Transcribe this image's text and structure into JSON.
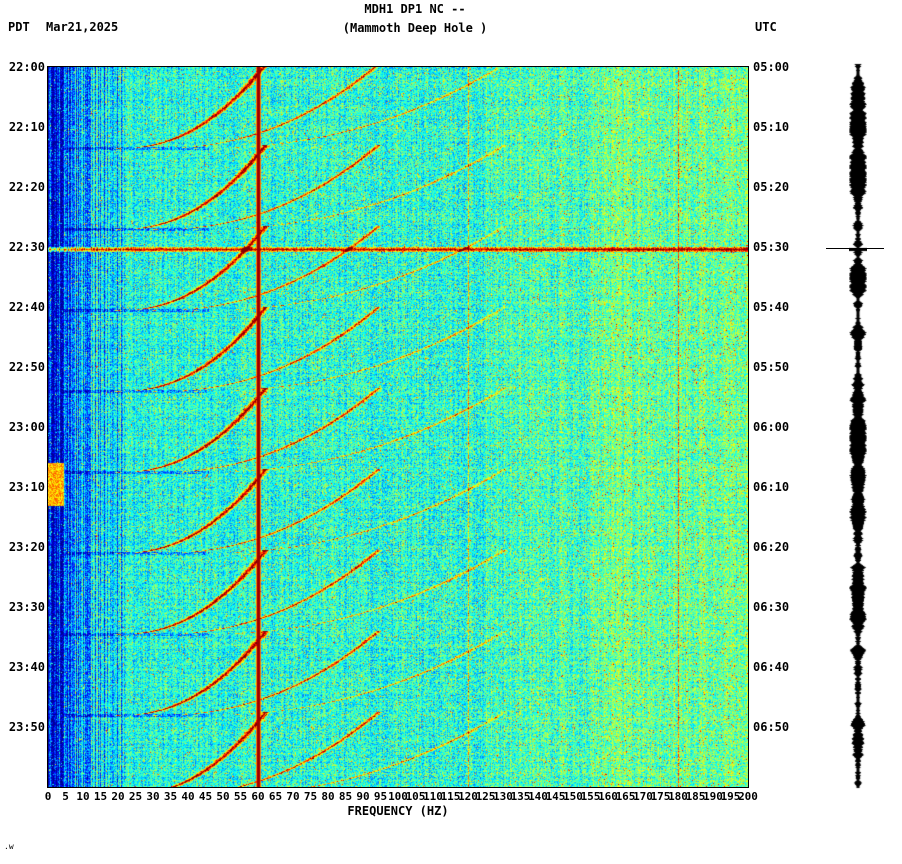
{
  "header": {
    "tz_left": "PDT",
    "date": "Mar21,2025",
    "title_line1": "MDH1 DP1 NC --",
    "title_line2": "(Mammoth Deep Hole )",
    "tz_right": "UTC"
  },
  "footer": {
    "corner_text": ".w"
  },
  "chart_data": {
    "type": "heatmap",
    "subtype": "spectrogram",
    "station": {
      "code": "MDH1",
      "channel": "DP1",
      "network": "NC",
      "site_name": "Mammoth Deep Hole"
    },
    "xlabel": "FREQUENCY (HZ)",
    "x_range_hz": [
      0,
      200
    ],
    "x_ticks": [
      0,
      5,
      10,
      15,
      20,
      25,
      30,
      35,
      40,
      45,
      50,
      55,
      60,
      65,
      70,
      75,
      80,
      85,
      90,
      95,
      100,
      105,
      110,
      115,
      120,
      125,
      130,
      135,
      140,
      145,
      150,
      155,
      160,
      165,
      170,
      175,
      180,
      185,
      190,
      195,
      200
    ],
    "time_axis": {
      "left_tz": "PDT",
      "right_tz": "UTC",
      "span_minutes": 120,
      "left_labels": [
        "22:00",
        "22:10",
        "22:20",
        "22:30",
        "22:40",
        "22:50",
        "23:00",
        "23:10",
        "23:20",
        "23:30",
        "23:40",
        "23:50"
      ],
      "right_labels": [
        "05:00",
        "05:10",
        "05:20",
        "05:30",
        "05:40",
        "05:50",
        "06:00",
        "06:10",
        "06:20",
        "06:30",
        "06:40",
        "06:50"
      ]
    },
    "colormap": "jet",
    "background_level": 0.4,
    "features": {
      "power_line_hz": [
        60,
        120,
        180
      ],
      "broadband_event": {
        "pdt": "22:30",
        "utc": "05:30",
        "minute": 30.3,
        "freq_extent_hz": [
          0,
          200
        ]
      },
      "tremor_events": {
        "description": "repeating gliding harmonic arcs, frequency sweeping down from ~62 Hz to ~20 Hz (with overtones to ~130 Hz)",
        "end_times_min": [
          13.5,
          27,
          40.5,
          54,
          67.5,
          81,
          94.5,
          108,
          121.5
        ],
        "duration_min": 14,
        "f_start_hz": 62,
        "f_end_hz": 20,
        "harmonic_multiples": [
          1,
          1.52,
          2.1
        ]
      },
      "low_freq_blob": {
        "start_min": 66,
        "end_min": 73,
        "f_max_hz": 4.5
      }
    },
    "right_strip": {
      "type": "amplitude-trace",
      "color": "#000000",
      "spike_minute": 30.3
    }
  }
}
